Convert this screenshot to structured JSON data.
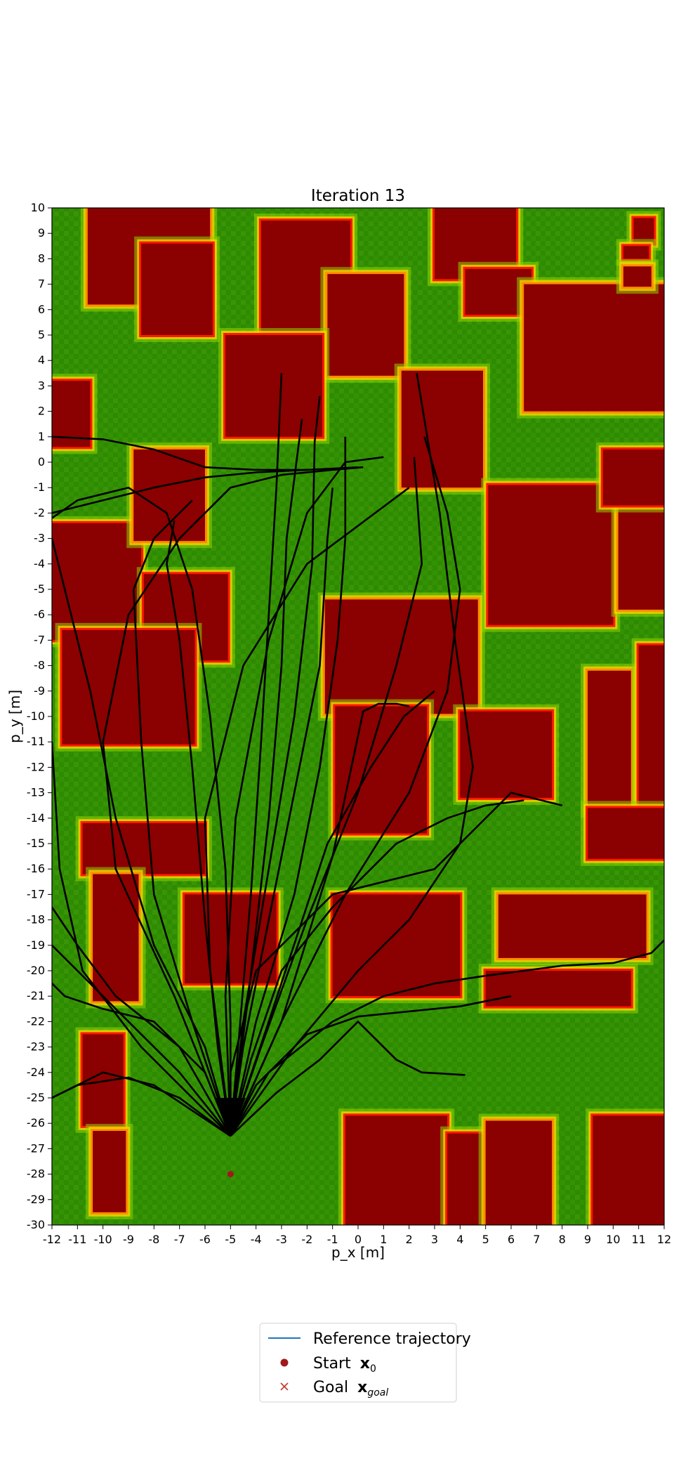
{
  "chart_data": {
    "type": "heatmap",
    "title": "Iteration 13",
    "xlabel": "p_x [m]",
    "ylabel": "p_y [m]",
    "xlim": [
      -12,
      12
    ],
    "ylim": [
      -30,
      10
    ],
    "xticks": [
      -12,
      -11,
      -10,
      -9,
      -8,
      -7,
      -6,
      -5,
      -4,
      -3,
      -2,
      -1,
      0,
      1,
      2,
      3,
      4,
      5,
      6,
      7,
      8,
      9,
      10,
      11,
      12
    ],
    "yticks": [
      10,
      9,
      8,
      7,
      6,
      5,
      4,
      3,
      2,
      1,
      0,
      -1,
      -2,
      -3,
      -4,
      -5,
      -6,
      -7,
      -8,
      -9,
      -10,
      -11,
      -12,
      -13,
      -14,
      -15,
      -16,
      -17,
      -18,
      -19,
      -20,
      -21,
      -22,
      -23,
      -24,
      -25,
      -26,
      -27,
      -28,
      -29,
      -30
    ],
    "grid": false,
    "colors": {
      "free": "#2e8b00",
      "obstacle": "#8b0000",
      "high_cost": "#ff1a00",
      "mid_cost": "#ff8c00",
      "low_cost": "#ffd400",
      "edge_cost": "#8fd400",
      "trajectory": "#000000",
      "reference": "#1f77b4",
      "start": "#a0181c",
      "goal": "#c0392b"
    },
    "obstacles": [
      {
        "x": -10.6,
        "y": 10,
        "w": 4.8,
        "h": 3.8
      },
      {
        "x": -8.5,
        "y": 8.6,
        "w": 2.8,
        "h": 3.6
      },
      {
        "x": -3.8,
        "y": 9.5,
        "w": 3.5,
        "h": 5
      },
      {
        "x": -1.2,
        "y": 7.4,
        "w": 3.0,
        "h": 4
      },
      {
        "x": 3.0,
        "y": 10,
        "w": 3.2,
        "h": 2.8
      },
      {
        "x": 4.2,
        "y": 7.6,
        "w": 2.6,
        "h": 1.8
      },
      {
        "x": 6.5,
        "y": 7.0,
        "w": 5.5,
        "h": 5
      },
      {
        "x": 10.8,
        "y": 9.6,
        "w": 0.8,
        "h": 1
      },
      {
        "x": 10.4,
        "y": 8.5,
        "w": 1.0,
        "h": 0.5
      },
      {
        "x": 10.4,
        "y": 7.7,
        "w": 1.1,
        "h": 0.8
      },
      {
        "x": -12,
        "y": 3.2,
        "w": 1.5,
        "h": 2.6
      },
      {
        "x": -5.2,
        "y": 5.0,
        "w": 3.8,
        "h": 4.0
      },
      {
        "x": 1.7,
        "y": 3.6,
        "w": 3.2,
        "h": 4.6
      },
      {
        "x": 5.1,
        "y": -0.9,
        "w": 4.9,
        "h": 5.5
      },
      {
        "x": -12,
        "y": -2.4,
        "w": 3.5,
        "h": 4.6
      },
      {
        "x": -8.8,
        "y": 0.5,
        "w": 2.8,
        "h": 3.6
      },
      {
        "x": -8.4,
        "y": -4.4,
        "w": 3.3,
        "h": 3.4
      },
      {
        "x": -11.6,
        "y": -6.6,
        "w": 5.2,
        "h": 4.5
      },
      {
        "x": -1.3,
        "y": -5.4,
        "w": 6.0,
        "h": 4.5
      },
      {
        "x": -0.9,
        "y": -9.6,
        "w": 3.6,
        "h": 5.0
      },
      {
        "x": 4.0,
        "y": -9.8,
        "w": 3.6,
        "h": 3.4
      },
      {
        "x": 9.0,
        "y": -8.2,
        "w": 1.7,
        "h": 5.5
      },
      {
        "x": 11.0,
        "y": -7.2,
        "w": 1.0,
        "h": 6.5
      },
      {
        "x": 9.0,
        "y": -13.6,
        "w": 3.0,
        "h": 2.0
      },
      {
        "x": 10.2,
        "y": -1.2,
        "w": 1.8,
        "h": 4.6
      },
      {
        "x": 9.6,
        "y": 0.5,
        "w": 2.4,
        "h": 2.2
      },
      {
        "x": -10.8,
        "y": -14.2,
        "w": 4.8,
        "h": 2.0
      },
      {
        "x": -10.4,
        "y": -16.2,
        "w": 1.8,
        "h": 5.0
      },
      {
        "x": -6.8,
        "y": -17.0,
        "w": 3.6,
        "h": 3.5
      },
      {
        "x": -1.0,
        "y": -17.0,
        "w": 5.0,
        "h": 4.0
      },
      {
        "x": 5.5,
        "y": -17.0,
        "w": 5.8,
        "h": 2.5
      },
      {
        "x": 5.0,
        "y": -20.0,
        "w": 5.7,
        "h": 1.4
      },
      {
        "x": -10.8,
        "y": -22.5,
        "w": 1.6,
        "h": 3.6
      },
      {
        "x": -10.4,
        "y": -26.3,
        "w": 1.3,
        "h": 3.2
      },
      {
        "x": -0.5,
        "y": -25.7,
        "w": 4.0,
        "h": 4.3
      },
      {
        "x": 3.5,
        "y": -26.4,
        "w": 1.5,
        "h": 3.6
      },
      {
        "x": 5.0,
        "y": -25.9,
        "w": 2.6,
        "h": 4.1
      },
      {
        "x": 9.2,
        "y": -25.7,
        "w": 2.8,
        "h": 4.3
      }
    ],
    "start": [
      -5,
      -28
    ],
    "fan_point": [
      -5,
      -26.5
    ],
    "trajectories": [
      [
        [
          -5,
          -26.5
        ],
        [
          -6,
          -23
        ],
        [
          -8,
          -19
        ],
        [
          -9.5,
          -14
        ],
        [
          -10.5,
          -9
        ],
        [
          -11.5,
          -5
        ],
        [
          -12,
          -3
        ]
      ],
      [
        [
          -5,
          -26.5
        ],
        [
          -7,
          -23
        ],
        [
          -9.5,
          -21
        ],
        [
          -11,
          -19
        ],
        [
          -12,
          -17.5
        ]
      ],
      [
        [
          -5,
          -26.5
        ],
        [
          -8,
          -24.5
        ],
        [
          -10,
          -24
        ],
        [
          -12,
          -25
        ]
      ],
      [
        [
          -5,
          -26.5
        ],
        [
          -7,
          -24
        ],
        [
          -9,
          -22
        ],
        [
          -11,
          -20
        ],
        [
          -12,
          -19
        ]
      ],
      [
        [
          -5,
          -26.5
        ],
        [
          -4.5,
          -23
        ],
        [
          -3.5,
          -18
        ],
        [
          -2.5,
          -13
        ],
        [
          -1.5,
          -8
        ],
        [
          -1.2,
          -3
        ],
        [
          -1,
          -1
        ]
      ],
      [
        [
          -5,
          -26.5
        ],
        [
          -4,
          -22
        ],
        [
          -2.5,
          -17
        ],
        [
          -1.5,
          -12
        ],
        [
          -0.8,
          -7
        ],
        [
          -0.5,
          -3
        ],
        [
          -0.5,
          1
        ]
      ],
      [
        [
          -5,
          -26.5
        ],
        [
          -3.8,
          -23
        ],
        [
          -2,
          -18
        ],
        [
          0,
          -13
        ],
        [
          1.5,
          -8
        ],
        [
          2.5,
          -4
        ],
        [
          2.2,
          0.2
        ]
      ],
      [
        [
          -5,
          -26.5
        ],
        [
          -3,
          -22
        ],
        [
          -0.5,
          -17
        ],
        [
          2,
          -13
        ],
        [
          3.5,
          -9
        ],
        [
          4,
          -5
        ],
        [
          3.5,
          -2
        ],
        [
          2.6,
          1
        ]
      ],
      [
        [
          -5,
          -26.5
        ],
        [
          -2.5,
          -23
        ],
        [
          0,
          -20
        ],
        [
          2,
          -18
        ],
        [
          4,
          -15
        ],
        [
          4.5,
          -12
        ],
        [
          3.8,
          -7
        ],
        [
          3.2,
          -2
        ],
        [
          2.3,
          3.5
        ]
      ],
      [
        [
          -5,
          -26.5
        ],
        [
          -3.5,
          -24
        ],
        [
          -1,
          -22
        ],
        [
          1,
          -21
        ],
        [
          3,
          -20.5
        ],
        [
          5,
          -20.2
        ],
        [
          8,
          -19.8
        ],
        [
          10,
          -19.7
        ],
        [
          11.5,
          -19.3
        ],
        [
          12,
          -18.8
        ]
      ],
      [
        [
          -5,
          -26.5
        ],
        [
          -4,
          -24.5
        ],
        [
          -2,
          -22.5
        ],
        [
          0,
          -21.8
        ],
        [
          2,
          -21.6
        ],
        [
          4,
          -21.4
        ],
        [
          6,
          -21
        ]
      ],
      [
        [
          -5,
          -26.5
        ],
        [
          -3.2,
          -24.8
        ],
        [
          -1.5,
          -23.5
        ],
        [
          0,
          -22
        ],
        [
          1.5,
          -23.5
        ],
        [
          2.5,
          -24
        ],
        [
          4.2,
          -24.1
        ]
      ],
      [
        [
          -5,
          -26.5
        ],
        [
          -5.5,
          -23
        ],
        [
          -6,
          -18
        ],
        [
          -6.5,
          -12
        ],
        [
          -7,
          -7
        ],
        [
          -7.5,
          -4
        ],
        [
          -7.2,
          -2.3
        ]
      ],
      [
        [
          -5,
          -26.5
        ],
        [
          -6.5,
          -22
        ],
        [
          -8,
          -17
        ],
        [
          -8.5,
          -11
        ],
        [
          -8.8,
          -5
        ],
        [
          -8,
          -3
        ],
        [
          -6.5,
          -1.5
        ]
      ],
      [
        [
          -5,
          -26.5
        ],
        [
          -5,
          -22
        ],
        [
          -5.2,
          -16
        ],
        [
          -5.8,
          -10
        ],
        [
          -6.5,
          -5
        ],
        [
          -7.5,
          -2
        ],
        [
          -9,
          -1
        ],
        [
          -11,
          -1.5
        ],
        [
          -12,
          -2.2
        ]
      ],
      [
        [
          -5,
          -26.5
        ],
        [
          -4.7,
          -23
        ],
        [
          -4.2,
          -17
        ],
        [
          -3.8,
          -11
        ],
        [
          -3.5,
          -6
        ],
        [
          -3.2,
          -1
        ],
        [
          -3,
          3.5
        ]
      ],
      [
        [
          -5,
          -26.5
        ],
        [
          -4.5,
          -22
        ],
        [
          -3.5,
          -16
        ],
        [
          -2.5,
          -10
        ],
        [
          -1.8,
          -4
        ],
        [
          -1.7,
          0.8
        ],
        [
          -1.5,
          2.6
        ]
      ],
      [
        [
          -5,
          -26.5
        ],
        [
          -5.2,
          -21
        ],
        [
          -4.8,
          -14
        ],
        [
          -3.5,
          -7
        ],
        [
          -2,
          -2
        ],
        [
          -0.5,
          0
        ],
        [
          1,
          0.2
        ]
      ],
      [
        [
          -5,
          -26.5
        ],
        [
          -5.8,
          -20
        ],
        [
          -6,
          -14
        ],
        [
          -4.5,
          -8
        ],
        [
          -2,
          -4
        ],
        [
          0,
          -2.5
        ],
        [
          2,
          -1
        ]
      ],
      [
        [
          -5,
          -26.5
        ],
        [
          -7.2,
          -21
        ],
        [
          -9.5,
          -16
        ],
        [
          -10,
          -11
        ],
        [
          -9,
          -6
        ],
        [
          -7,
          -3
        ],
        [
          -5,
          -1
        ],
        [
          -3,
          -0.5
        ],
        [
          -1,
          -0.3
        ],
        [
          0.2,
          -0.2
        ]
      ],
      [
        [
          -5,
          -26.5
        ],
        [
          -8.5,
          -23
        ],
        [
          -10.8,
          -20
        ],
        [
          -11.7,
          -16
        ],
        [
          -12,
          -11
        ]
      ],
      [
        [
          -5,
          -26.5
        ],
        [
          -3,
          -22
        ],
        [
          -1,
          -15.5
        ],
        [
          0.2,
          -9.8
        ],
        [
          0.8,
          -9.5
        ],
        [
          1.5,
          -9.5
        ],
        [
          2,
          -9.6
        ]
      ],
      [
        [
          -5,
          -26.5
        ],
        [
          -5,
          -24
        ],
        [
          -4,
          -20
        ],
        [
          -1,
          -17
        ],
        [
          3,
          -16
        ],
        [
          6,
          -13
        ],
        [
          8,
          -13.5
        ]
      ],
      [
        [
          -5,
          -26.5
        ],
        [
          -6,
          -24
        ],
        [
          -8,
          -22
        ],
        [
          -10,
          -21.5
        ],
        [
          -11.5,
          -21
        ],
        [
          -12,
          -20.5
        ]
      ],
      [
        [
          -5,
          -26.5
        ],
        [
          -4.2,
          -23.5
        ],
        [
          -3,
          -20
        ],
        [
          -1,
          -17.5
        ],
        [
          1.5,
          -15
        ],
        [
          3.5,
          -14
        ],
        [
          5,
          -13.5
        ],
        [
          6.5,
          -13.3
        ]
      ],
      [
        [
          -5,
          -26.5
        ],
        [
          -4.3,
          -21
        ],
        [
          -3.5,
          -14
        ],
        [
          -3,
          -8
        ],
        [
          -2.8,
          -3
        ],
        [
          -2.2,
          1.7
        ]
      ],
      [
        [
          -12,
          1
        ],
        [
          -10,
          0.9
        ],
        [
          -8,
          0.5
        ],
        [
          -6,
          -0.2
        ],
        [
          -4,
          -0.3
        ],
        [
          -2,
          -0.3
        ],
        [
          0,
          -0.2
        ]
      ],
      [
        [
          -12,
          -2
        ],
        [
          -10,
          -1.5
        ],
        [
          -8,
          -1
        ],
        [
          -6,
          -0.6
        ],
        [
          -4,
          -0.4
        ],
        [
          -2,
          -0.3
        ]
      ],
      [
        [
          -5,
          -26.5
        ],
        [
          -7,
          -25
        ],
        [
          -9,
          -24.2
        ],
        [
          -11,
          -24.5
        ],
        [
          -12,
          -25
        ]
      ],
      [
        [
          -5,
          -26.5
        ],
        [
          -3.5,
          -22
        ],
        [
          -1.2,
          -15
        ],
        [
          0.5,
          -12
        ],
        [
          1.8,
          -10
        ],
        [
          3,
          -9
        ]
      ]
    ],
    "legend": {
      "position": "lower-center",
      "entries": [
        {
          "label": "Reference trajectory",
          "marker": "line"
        },
        {
          "label": "Start",
          "math": "x",
          "sub": "0",
          "marker": "dot"
        },
        {
          "label": "Goal",
          "math": "x",
          "sub": "goal",
          "marker": "cross"
        }
      ]
    }
  }
}
